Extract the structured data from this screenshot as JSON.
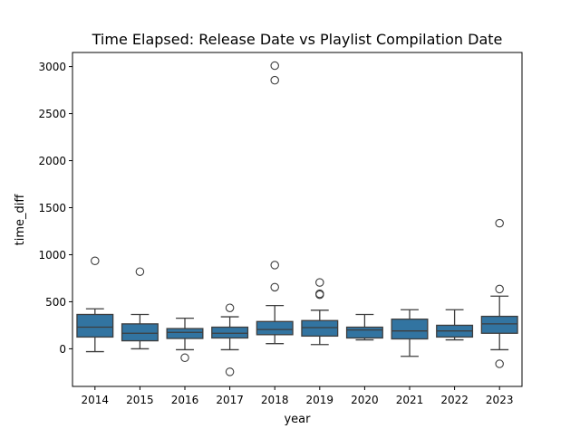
{
  "chart_data": {
    "type": "box",
    "title": "Time Elapsed: Release Date vs Playlist Compilation Date",
    "xlabel": "year",
    "ylabel": "time_diff",
    "ylim": [
      -400,
      3150
    ],
    "yticks": [
      0,
      500,
      1000,
      1500,
      2000,
      2500,
      3000
    ],
    "ytick_labels": [
      "0",
      "500",
      "1000",
      "1500",
      "2000",
      "2500",
      "3000"
    ],
    "grid": false,
    "box_color": "#3274a1",
    "categories": [
      "2014",
      "2015",
      "2016",
      "2017",
      "2018",
      "2019",
      "2020",
      "2021",
      "2022",
      "2023"
    ],
    "boxes": [
      {
        "year": "2014",
        "whislo": -30,
        "q1": 125,
        "med": 230,
        "q3": 365,
        "whishi": 425,
        "fliers": [
          935
        ]
      },
      {
        "year": "2015",
        "whislo": 0,
        "q1": 85,
        "med": 165,
        "q3": 265,
        "whishi": 365,
        "fliers": [
          820
        ]
      },
      {
        "year": "2016",
        "whislo": -10,
        "q1": 110,
        "med": 175,
        "q3": 215,
        "whishi": 325,
        "fliers": [
          -95
        ]
      },
      {
        "year": "2017",
        "whislo": -10,
        "q1": 115,
        "med": 165,
        "q3": 230,
        "whishi": 340,
        "fliers": [
          435,
          -245
        ]
      },
      {
        "year": "2018",
        "whislo": 55,
        "q1": 150,
        "med": 205,
        "q3": 290,
        "whishi": 460,
        "fliers": [
          3010,
          2855,
          890,
          655
        ]
      },
      {
        "year": "2019",
        "whislo": 45,
        "q1": 135,
        "med": 225,
        "q3": 300,
        "whishi": 410,
        "fliers": [
          705,
          585,
          575
        ]
      },
      {
        "year": "2020",
        "whislo": 95,
        "q1": 115,
        "med": 200,
        "q3": 230,
        "whishi": 365,
        "fliers": []
      },
      {
        "year": "2021",
        "whislo": -80,
        "q1": 105,
        "med": 190,
        "q3": 315,
        "whishi": 415,
        "fliers": []
      },
      {
        "year": "2022",
        "whislo": 95,
        "q1": 125,
        "med": 190,
        "q3": 250,
        "whishi": 415,
        "fliers": []
      },
      {
        "year": "2023",
        "whislo": -10,
        "q1": 165,
        "med": 265,
        "q3": 345,
        "whishi": 560,
        "fliers": [
          1335,
          635,
          -160
        ]
      }
    ]
  }
}
